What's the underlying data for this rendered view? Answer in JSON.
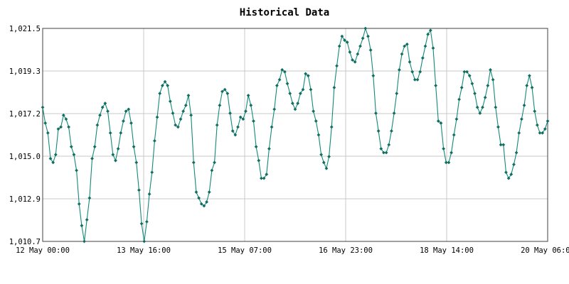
{
  "chart_data": {
    "type": "line",
    "title": "Historical Data",
    "xlabel": "",
    "ylabel": "",
    "x_tick_labels": [
      "12 May 00:00",
      "13 May 16:00",
      "15 May 07:00",
      "16 May 23:00",
      "18 May 14:00",
      "20 May 06:00"
    ],
    "y_tick_labels": [
      "1,010.7",
      "1,012.9",
      "1,015.0",
      "1,017.2",
      "1,019.3",
      "1,021.5"
    ],
    "ylim": [
      1010.7,
      1021.5
    ],
    "grid": true,
    "line_color": "#138a78",
    "grid_color": "#c8c8c8",
    "series": [
      {
        "values": [
          1017.5,
          1016.7,
          1016.2,
          1014.9,
          1014.7,
          1015.1,
          1016.4,
          1016.5,
          1017.1,
          1016.9,
          1016.5,
          1015.5,
          1015.1,
          1014.3,
          1012.6,
          1011.5,
          1010.7,
          1011.8,
          1012.9,
          1014.9,
          1015.5,
          1016.6,
          1017.1,
          1017.5,
          1017.7,
          1017.3,
          1016.2,
          1015.1,
          1014.8,
          1015.4,
          1016.2,
          1016.8,
          1017.3,
          1017.4,
          1016.7,
          1015.5,
          1014.7,
          1013.3,
          1011.6,
          1010.7,
          1011.7,
          1013.1,
          1014.2,
          1015.8,
          1017.0,
          1018.2,
          1018.6,
          1018.8,
          1018.6,
          1017.8,
          1017.2,
          1016.6,
          1016.5,
          1016.9,
          1017.3,
          1017.6,
          1018.1,
          1017.1,
          1014.7,
          1013.2,
          1012.9,
          1012.6,
          1012.5,
          1012.7,
          1013.2,
          1014.3,
          1014.7,
          1016.6,
          1017.6,
          1018.3,
          1018.4,
          1018.2,
          1017.2,
          1016.3,
          1016.1,
          1016.5,
          1017.0,
          1016.9,
          1017.3,
          1018.1,
          1017.6,
          1016.8,
          1015.5,
          1014.8,
          1013.9,
          1013.9,
          1014.1,
          1015.4,
          1016.5,
          1017.4,
          1018.6,
          1018.9,
          1019.4,
          1019.3,
          1018.7,
          1018.2,
          1017.7,
          1017.4,
          1017.7,
          1018.2,
          1018.4,
          1019.2,
          1019.1,
          1018.4,
          1017.3,
          1016.8,
          1016.1,
          1015.1,
          1014.7,
          1014.4,
          1015.0,
          1016.5,
          1018.5,
          1019.6,
          1020.6,
          1021.1,
          1020.9,
          1020.8,
          1020.3,
          1019.9,
          1019.8,
          1020.2,
          1020.6,
          1021.0,
          1021.5,
          1021.1,
          1020.4,
          1019.1,
          1017.2,
          1016.3,
          1015.4,
          1015.2,
          1015.2,
          1015.6,
          1016.3,
          1017.2,
          1018.2,
          1019.4,
          1020.2,
          1020.6,
          1020.7,
          1019.8,
          1019.3,
          1018.9,
          1018.9,
          1019.3,
          1020.0,
          1020.6,
          1021.2,
          1021.4,
          1020.5,
          1018.6,
          1016.8,
          1016.7,
          1015.4,
          1014.7,
          1014.7,
          1015.2,
          1016.1,
          1016.9,
          1017.9,
          1018.5,
          1019.3,
          1019.3,
          1019.1,
          1018.7,
          1018.2,
          1017.5,
          1017.2,
          1017.5,
          1018.0,
          1018.6,
          1019.4,
          1018.9,
          1017.5,
          1016.5,
          1015.6,
          1015.6,
          1014.2,
          1013.9,
          1014.1,
          1014.6,
          1015.2,
          1016.2,
          1016.9,
          1017.6,
          1018.6,
          1019.1,
          1018.5,
          1017.3,
          1016.6,
          1016.2,
          1016.2,
          1016.4,
          1016.8
        ]
      }
    ]
  }
}
